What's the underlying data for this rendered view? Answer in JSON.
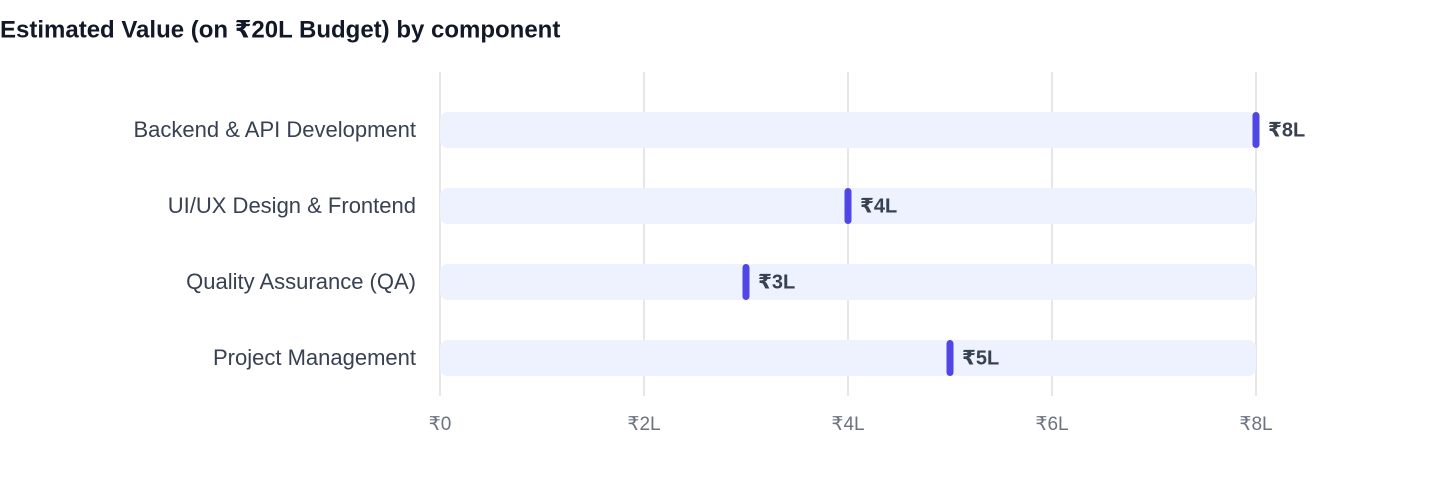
{
  "chart_data": {
    "type": "dot",
    "title": "Estimated Value (on ₹20L Budget) by component",
    "categories": [
      "Backend & API Development",
      "UI/UX Design & Frontend",
      "Quality Assurance (QA)",
      "Project Management"
    ],
    "values": [
      8,
      4,
      3,
      5
    ],
    "value_labels": [
      "₹8L",
      "₹4L",
      "₹3L",
      "₹5L"
    ],
    "color": "#4f46e5",
    "xlim": [
      0,
      8
    ],
    "xticks": [
      {
        "value": 0,
        "label": "₹0"
      },
      {
        "value": 2,
        "label": "₹2L"
      },
      {
        "value": 4,
        "label": "₹4L"
      },
      {
        "value": 6,
        "label": "₹6L"
      },
      {
        "value": 8,
        "label": "₹8L"
      }
    ],
    "grid": true
  }
}
